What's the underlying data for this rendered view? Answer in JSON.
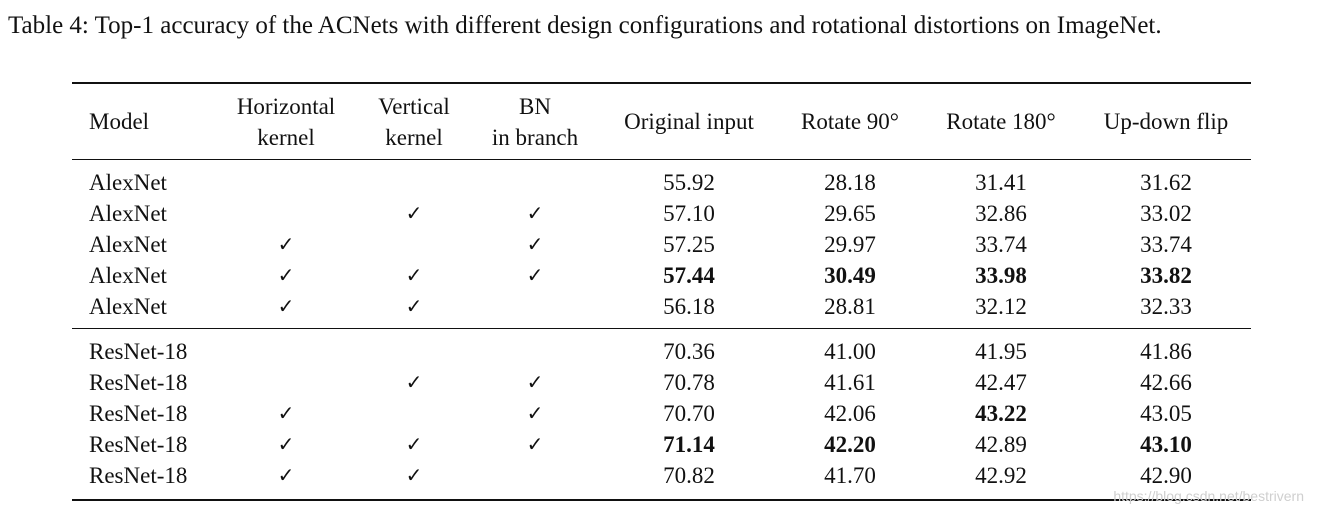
{
  "caption": "Table 4: Top-1 accuracy of the ACNets with different design configurations and rotational distortions on ImageNet.",
  "headers": {
    "model": "Model",
    "horizontal": [
      "Horizontal",
      "kernel"
    ],
    "vertical": [
      "Vertical",
      "kernel"
    ],
    "bn": [
      "BN",
      "in branch"
    ],
    "original": "Original input",
    "rot90": "Rotate 90°",
    "rot180": "Rotate 180°",
    "flip": "Up-down flip"
  },
  "check_mark": "✓",
  "rows": [
    {
      "model": "AlexNet",
      "horizontal": false,
      "vertical": false,
      "bn": false,
      "original": "55.92",
      "rot90": "28.18",
      "rot180": "31.41",
      "flip": "31.62",
      "bold": []
    },
    {
      "model": "AlexNet",
      "horizontal": false,
      "vertical": true,
      "bn": true,
      "original": "57.10",
      "rot90": "29.65",
      "rot180": "32.86",
      "flip": "33.02",
      "bold": []
    },
    {
      "model": "AlexNet",
      "horizontal": true,
      "vertical": false,
      "bn": true,
      "original": "57.25",
      "rot90": "29.97",
      "rot180": "33.74",
      "flip": "33.74",
      "bold": []
    },
    {
      "model": "AlexNet",
      "horizontal": true,
      "vertical": true,
      "bn": true,
      "original": "57.44",
      "rot90": "30.49",
      "rot180": "33.98",
      "flip": "33.82",
      "bold": [
        "original",
        "rot90",
        "rot180",
        "flip"
      ]
    },
    {
      "model": "AlexNet",
      "horizontal": true,
      "vertical": true,
      "bn": false,
      "original": "56.18",
      "rot90": "28.81",
      "rot180": "32.12",
      "flip": "32.33",
      "bold": []
    },
    {
      "model": "ResNet-18",
      "horizontal": false,
      "vertical": false,
      "bn": false,
      "original": "70.36",
      "rot90": "41.00",
      "rot180": "41.95",
      "flip": "41.86",
      "bold": []
    },
    {
      "model": "ResNet-18",
      "horizontal": false,
      "vertical": true,
      "bn": true,
      "original": "70.78",
      "rot90": "41.61",
      "rot180": "42.47",
      "flip": "42.66",
      "bold": []
    },
    {
      "model": "ResNet-18",
      "horizontal": true,
      "vertical": false,
      "bn": true,
      "original": "70.70",
      "rot90": "42.06",
      "rot180": "43.22",
      "flip": "43.05",
      "bold": [
        "rot180"
      ]
    },
    {
      "model": "ResNet-18",
      "horizontal": true,
      "vertical": true,
      "bn": true,
      "original": "71.14",
      "rot90": "42.20",
      "rot180": "42.89",
      "flip": "43.10",
      "bold": [
        "original",
        "rot90",
        "flip"
      ]
    },
    {
      "model": "ResNet-18",
      "horizontal": true,
      "vertical": true,
      "bn": false,
      "original": "70.82",
      "rot90": "41.70",
      "rot180": "42.92",
      "flip": "42.90",
      "bold": []
    }
  ],
  "watermark": "https://blog.csdn.net/bestrivern"
}
